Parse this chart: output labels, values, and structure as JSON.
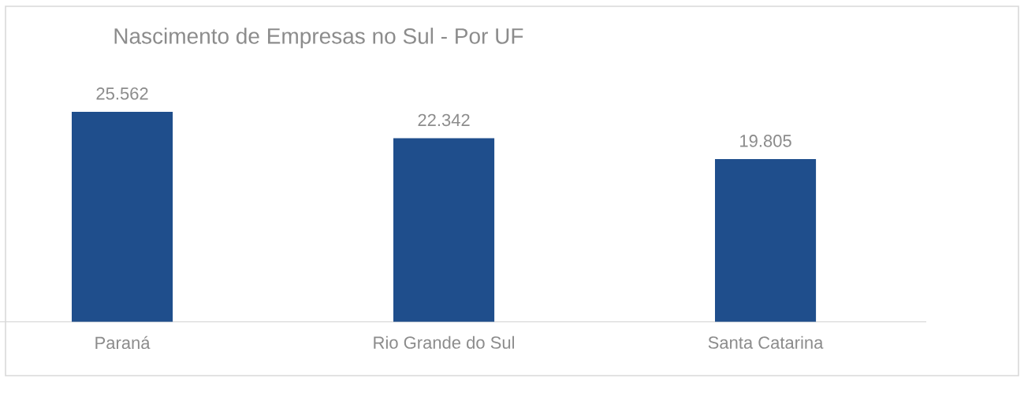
{
  "chart_data": {
    "type": "bar",
    "title": "Nascimento de Empresas no Sul - Por UF",
    "categories": [
      "Paraná",
      "Rio Grande do Sul",
      "Santa Catarina"
    ],
    "values": [
      25562,
      22342,
      19805
    ],
    "value_labels": [
      "25.562",
      "22.342",
      "19.805"
    ],
    "color": "#1f4e8c"
  }
}
